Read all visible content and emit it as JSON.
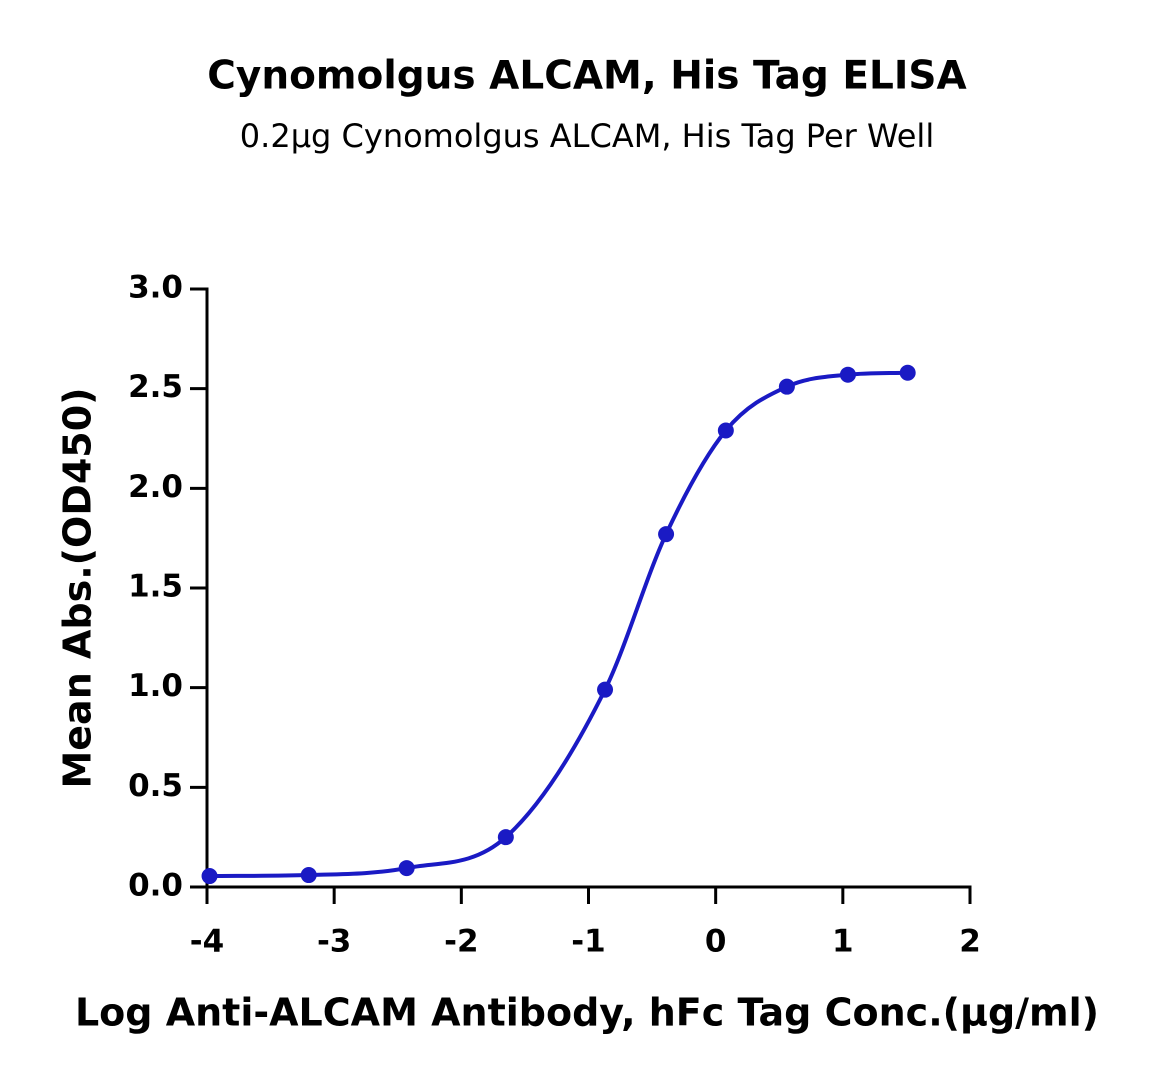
{
  "chart_data": {
    "type": "scatter",
    "title": "Cynomolgus ALCAM, His Tag ELISA",
    "subtitle": "0.2µg Cynomolgus ALCAM, His Tag Per Well",
    "x_label": "Log Anti-ALCAM Antibody, hFc Tag Conc.(µg/ml)",
    "y_label": "Mean Abs.(OD450)",
    "x": [
      -3.98,
      -3.2,
      -2.43,
      -1.65,
      -0.87,
      -0.39,
      0.08,
      0.56,
      1.04,
      1.51
    ],
    "values": [
      0.055,
      0.06,
      0.095,
      0.25,
      0.99,
      1.77,
      2.29,
      2.51,
      2.57,
      2.58
    ],
    "color": "#1a1ac4",
    "xlim": [
      -4,
      2
    ],
    "xticks": [
      -4,
      -3,
      -2,
      -1,
      0,
      1,
      2
    ],
    "ylim": [
      0,
      3
    ],
    "yticks": [
      {
        "value": 0,
        "label": "0.0"
      },
      {
        "value": 0.5,
        "label": "0.5"
      },
      {
        "value": 1,
        "label": "1.0"
      },
      {
        "value": 1.5,
        "label": "1.5"
      },
      {
        "value": 2,
        "label": "2.0"
      },
      {
        "value": 2.5,
        "label": "2.5"
      },
      {
        "value": 3,
        "label": "3.0"
      }
    ]
  }
}
